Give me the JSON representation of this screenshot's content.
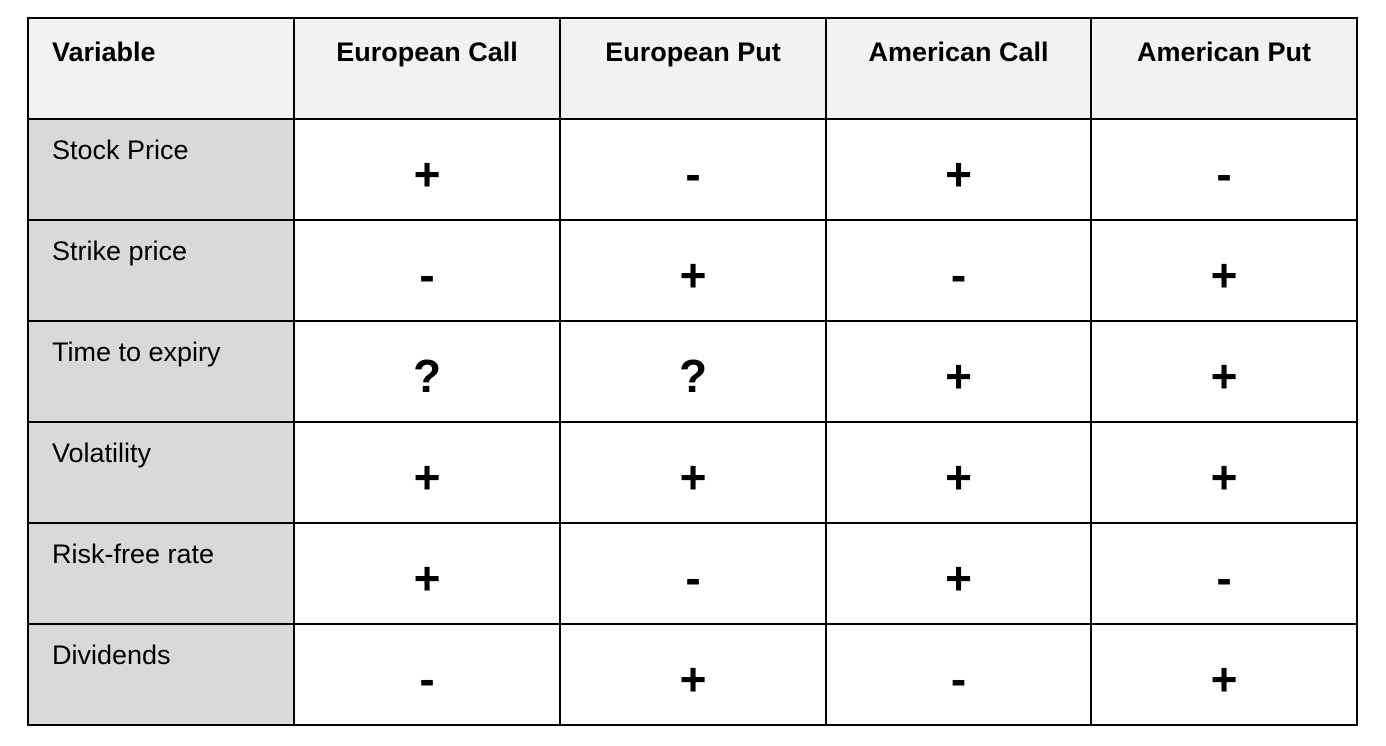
{
  "table": {
    "headers": [
      "Variable",
      "European Call",
      "European Put",
      "American Call",
      "American Put"
    ],
    "rows": [
      {
        "label": "Stock Price",
        "cells": [
          "+",
          "-",
          "+",
          "-"
        ]
      },
      {
        "label": "Strike price",
        "cells": [
          "-",
          "+",
          "-",
          "+"
        ]
      },
      {
        "label": "Time to expiry",
        "cells": [
          "?",
          "?",
          "+",
          "+"
        ]
      },
      {
        "label": "Volatility",
        "cells": [
          "+",
          "+",
          "+",
          "+"
        ]
      },
      {
        "label": "Risk-free rate",
        "cells": [
          "+",
          "-",
          "+",
          "-"
        ]
      },
      {
        "label": "Dividends",
        "cells": [
          "-",
          "+",
          "-",
          "+"
        ]
      }
    ]
  },
  "colors": {
    "header_bg": "#f2f2f2",
    "row_label_bg": "#d9d9d9",
    "border": "#000000"
  }
}
